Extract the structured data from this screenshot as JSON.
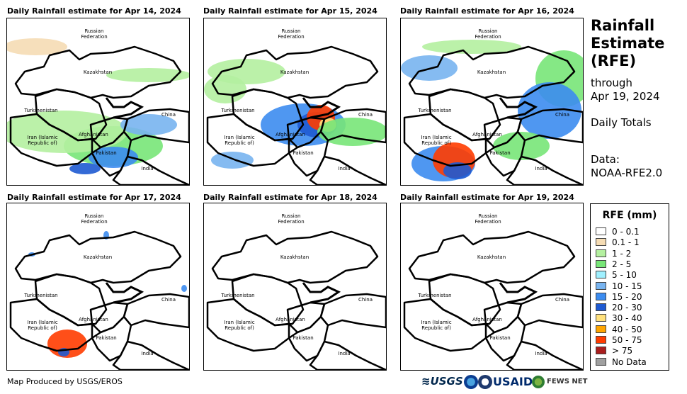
{
  "panels": [
    {
      "title": "Daily Rainfall estimate for Apr 14, 2024"
    },
    {
      "title": "Daily Rainfall estimate for Apr 15, 2024"
    },
    {
      "title": "Daily Rainfall estimate for Apr 16, 2024"
    },
    {
      "title": "Daily Rainfall estimate for Apr 17, 2024"
    },
    {
      "title": "Daily Rainfall estimate for Apr 18, 2024"
    },
    {
      "title": "Daily Rainfall estimate for Apr 19, 2024"
    }
  ],
  "map_labels": {
    "russia": "Russian\nFederation",
    "kazakhstan": "Kazakhstan",
    "turkmenistan": "Turkmenistan",
    "china": "China",
    "iran": "Iran  (Islamic\nRepublic of)",
    "afghanistan": "Afghanistan",
    "pakistan": "Pakistan",
    "india": "India"
  },
  "sidebar": {
    "title": "Rainfall Estimate (RFE)",
    "through": "through",
    "date": "Apr 19, 2024",
    "totals": "Daily Totals",
    "data_label": "Data:",
    "data_source": "NOAA-RFE2.0"
  },
  "legend": {
    "title": "RFE (mm)",
    "items": [
      {
        "label": "0 - 0.1",
        "color": "#ffffff"
      },
      {
        "label": "0.1 - 1",
        "color": "#f5dcb4"
      },
      {
        "label": "1 - 2",
        "color": "#b4f0a0"
      },
      {
        "label": "2 - 5",
        "color": "#78e678"
      },
      {
        "label": "5 - 10",
        "color": "#a0f0ff"
      },
      {
        "label": "10 - 15",
        "color": "#78b4f0"
      },
      {
        "label": "15 - 20",
        "color": "#3c8cf0"
      },
      {
        "label": "20 - 30",
        "color": "#1e5ad2"
      },
      {
        "label": "30 - 40",
        "color": "#ffe17d"
      },
      {
        "label": "40 - 50",
        "color": "#ffa500"
      },
      {
        "label": "50 - 75",
        "color": "#ff3c00"
      },
      {
        "label": "> 75",
        "color": "#aa1e1e"
      },
      {
        "label": "No Data",
        "color": "#a0a0a0"
      }
    ]
  },
  "footer": {
    "credit": "Map Produced by USGS/EROS",
    "logo_usgs": "≋USGS",
    "logo_usaid": "USAID",
    "logo_fews": "FEWS NET"
  }
}
